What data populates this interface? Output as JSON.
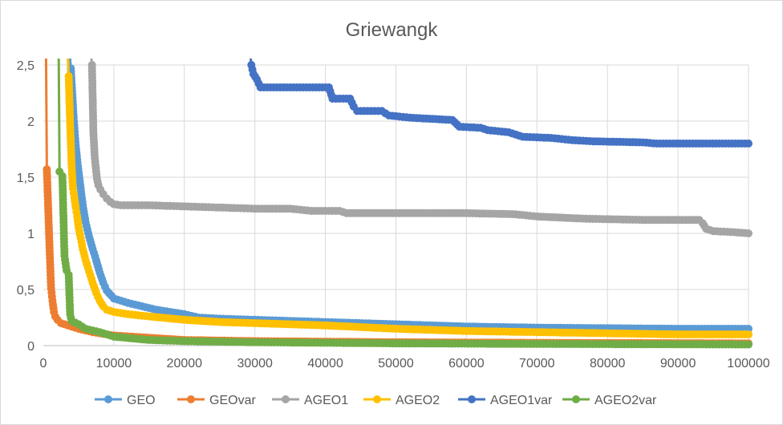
{
  "chart_data": {
    "type": "line",
    "title": "Griewangk",
    "xlabel": "",
    "ylabel": "",
    "xlim": [
      0,
      100000
    ],
    "ylim": [
      0,
      2.5
    ],
    "x_ticks": [
      "0",
      "10000",
      "20000",
      "30000",
      "40000",
      "50000",
      "60000",
      "70000",
      "80000",
      "90000",
      "100000"
    ],
    "y_ticks": [
      "0",
      "0,5",
      "1",
      "1,5",
      "2",
      "2,5"
    ],
    "grid": true,
    "legend_position": "bottom",
    "series": [
      {
        "name": "GEO",
        "color": "#5B9BD5",
        "points": [
          [
            3900,
            2.47
          ],
          [
            4300,
            2.03
          ],
          [
            4600,
            1.78
          ],
          [
            4900,
            1.6
          ],
          [
            5300,
            1.4
          ],
          [
            5600,
            1.25
          ],
          [
            6000,
            1.1
          ],
          [
            6500,
            0.97
          ],
          [
            7000,
            0.86
          ],
          [
            7500,
            0.76
          ],
          [
            8000,
            0.65
          ],
          [
            8500,
            0.56
          ],
          [
            9000,
            0.49
          ],
          [
            10000,
            0.42
          ],
          [
            11000,
            0.4
          ],
          [
            12000,
            0.38
          ],
          [
            14000,
            0.35
          ],
          [
            16000,
            0.32
          ],
          [
            18000,
            0.3
          ],
          [
            20000,
            0.28
          ],
          [
            22000,
            0.25
          ],
          [
            25000,
            0.24
          ],
          [
            30000,
            0.23
          ],
          [
            35000,
            0.22
          ],
          [
            40000,
            0.21
          ],
          [
            50000,
            0.19
          ],
          [
            60000,
            0.17
          ],
          [
            70000,
            0.16
          ],
          [
            80000,
            0.155
          ],
          [
            90000,
            0.15
          ],
          [
            100000,
            0.15
          ]
        ]
      },
      {
        "name": "GEOvar",
        "color": "#ED7D31",
        "points": [
          [
            500,
            1.57
          ],
          [
            900,
            0.84
          ],
          [
            1100,
            0.51
          ],
          [
            1300,
            0.4
          ],
          [
            1500,
            0.3
          ],
          [
            1700,
            0.26
          ],
          [
            2000,
            0.23
          ],
          [
            2500,
            0.2
          ],
          [
            3000,
            0.19
          ],
          [
            3500,
            0.18
          ],
          [
            4000,
            0.17
          ],
          [
            5000,
            0.15
          ],
          [
            7000,
            0.12
          ],
          [
            10000,
            0.09
          ],
          [
            15000,
            0.07
          ],
          [
            20000,
            0.05
          ],
          [
            30000,
            0.04
          ],
          [
            50000,
            0.03
          ],
          [
            70000,
            0.025
          ],
          [
            100000,
            0.02
          ]
        ]
      },
      {
        "name": "AGEO1",
        "color": "#A5A5A5",
        "points": [
          [
            6900,
            2.5
          ],
          [
            7100,
            1.9
          ],
          [
            7300,
            1.67
          ],
          [
            7600,
            1.49
          ],
          [
            7800,
            1.43
          ],
          [
            8100,
            1.39
          ],
          [
            8500,
            1.35
          ],
          [
            9000,
            1.31
          ],
          [
            9500,
            1.28
          ],
          [
            10000,
            1.26
          ],
          [
            11000,
            1.25
          ],
          [
            15000,
            1.25
          ],
          [
            20000,
            1.24
          ],
          [
            25000,
            1.23
          ],
          [
            30000,
            1.22
          ],
          [
            35000,
            1.22
          ],
          [
            38000,
            1.2
          ],
          [
            42000,
            1.2
          ],
          [
            43000,
            1.18
          ],
          [
            50000,
            1.18
          ],
          [
            60000,
            1.18
          ],
          [
            67000,
            1.17
          ],
          [
            70000,
            1.15
          ],
          [
            77000,
            1.13
          ],
          [
            85000,
            1.12
          ],
          [
            93000,
            1.12
          ],
          [
            93500,
            1.09
          ],
          [
            94000,
            1.04
          ],
          [
            95000,
            1.02
          ],
          [
            98000,
            1.01
          ],
          [
            100000,
            1.0
          ]
        ]
      },
      {
        "name": "AGEO2",
        "color": "#FFC000",
        "points": [
          [
            3600,
            2.4
          ],
          [
            3800,
            1.98
          ],
          [
            4000,
            1.62
          ],
          [
            4200,
            1.4
          ],
          [
            4400,
            1.32
          ],
          [
            4600,
            1.23
          ],
          [
            4800,
            1.15
          ],
          [
            5000,
            1.05
          ],
          [
            5300,
            0.96
          ],
          [
            5600,
            0.86
          ],
          [
            6000,
            0.76
          ],
          [
            6500,
            0.66
          ],
          [
            7000,
            0.56
          ],
          [
            7500,
            0.47
          ],
          [
            8000,
            0.4
          ],
          [
            8500,
            0.35
          ],
          [
            9000,
            0.32
          ],
          [
            10000,
            0.3
          ],
          [
            12000,
            0.28
          ],
          [
            15000,
            0.26
          ],
          [
            20000,
            0.23
          ],
          [
            25000,
            0.21
          ],
          [
            30000,
            0.2
          ],
          [
            40000,
            0.18
          ],
          [
            50000,
            0.15
          ],
          [
            60000,
            0.13
          ],
          [
            70000,
            0.12
          ],
          [
            80000,
            0.11
          ],
          [
            90000,
            0.1
          ],
          [
            100000,
            0.1
          ]
        ]
      },
      {
        "name": "AGEO1var",
        "color": "#4472C4",
        "points": [
          [
            29500,
            2.5
          ],
          [
            29800,
            2.42
          ],
          [
            30300,
            2.37
          ],
          [
            30800,
            2.3
          ],
          [
            35000,
            2.3
          ],
          [
            40500,
            2.3
          ],
          [
            41000,
            2.2
          ],
          [
            43500,
            2.2
          ],
          [
            44000,
            2.13
          ],
          [
            44500,
            2.09
          ],
          [
            48000,
            2.09
          ],
          [
            49000,
            2.05
          ],
          [
            52000,
            2.03
          ],
          [
            58000,
            2.01
          ],
          [
            59000,
            1.95
          ],
          [
            62000,
            1.94
          ],
          [
            63000,
            1.92
          ],
          [
            66000,
            1.9
          ],
          [
            68000,
            1.86
          ],
          [
            72000,
            1.85
          ],
          [
            75000,
            1.83
          ],
          [
            78000,
            1.82
          ],
          [
            85000,
            1.81
          ],
          [
            87000,
            1.8
          ],
          [
            100000,
            1.8
          ]
        ]
      },
      {
        "name": "AGEO2var",
        "color": "#70AD47",
        "points": [
          [
            2300,
            1.55
          ],
          [
            2700,
            1.51
          ],
          [
            3000,
            0.8
          ],
          [
            3300,
            0.67
          ],
          [
            3600,
            0.63
          ],
          [
            3800,
            0.28
          ],
          [
            4000,
            0.22
          ],
          [
            5000,
            0.19
          ],
          [
            6000,
            0.15
          ],
          [
            8000,
            0.12
          ],
          [
            10000,
            0.08
          ],
          [
            15000,
            0.05
          ],
          [
            20000,
            0.04
          ],
          [
            30000,
            0.03
          ],
          [
            50000,
            0.02
          ],
          [
            70000,
            0.015
          ],
          [
            100000,
            0.01
          ]
        ]
      }
    ]
  }
}
